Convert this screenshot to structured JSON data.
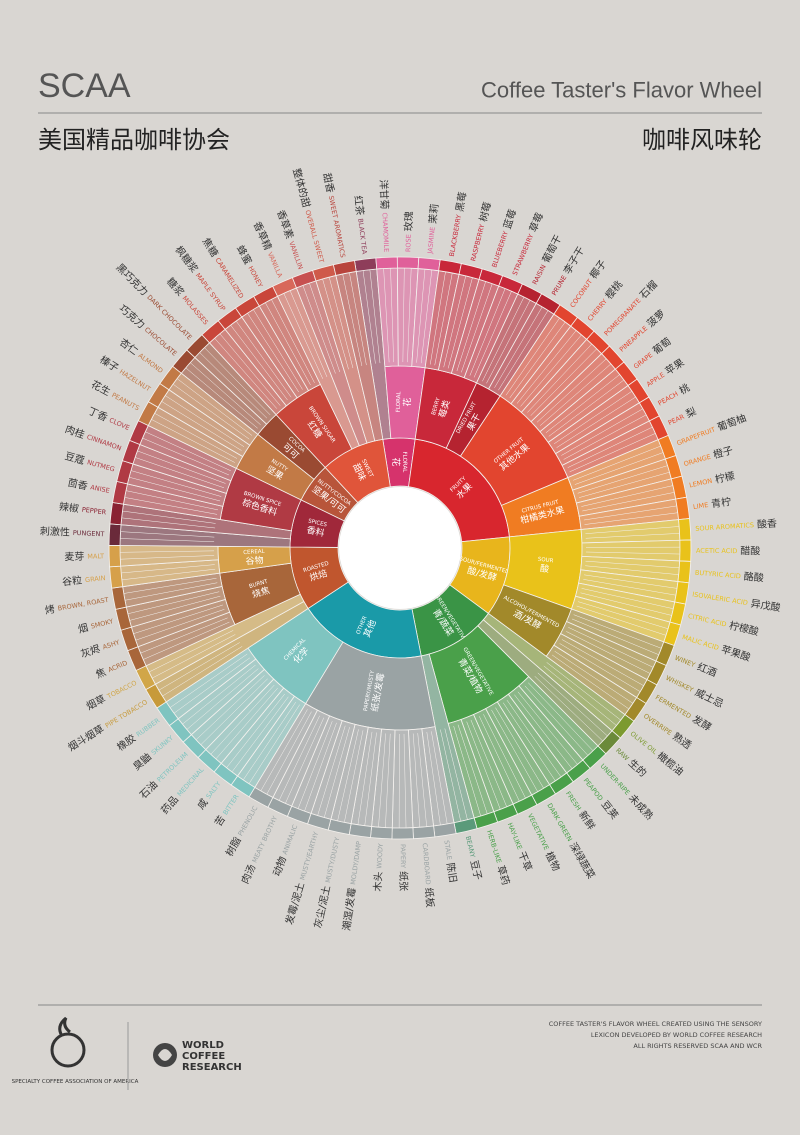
{
  "header": {
    "brand": "SCAA",
    "title": "Coffee Taster's Flavor Wheel",
    "brand_zh": "美国精品咖啡协会",
    "title_zh": "咖啡风味轮"
  },
  "wheel": [
    {
      "en": "FLORAL",
      "zh": "花",
      "color": "#d6336c",
      "children": [
        {
          "en": "BLACK TEA",
          "zh": "红茶",
          "color": "#8e3d5a"
        },
        {
          "en": "FLORAL",
          "zh": "花",
          "color": "#e0609a",
          "children": [
            {
              "en": "CHAMOMILE",
              "zh": "洋甘菊"
            },
            {
              "en": "ROSE",
              "zh": "玫瑰"
            },
            {
              "en": "JASMINE",
              "zh": "茉莉"
            }
          ]
        }
      ]
    },
    {
      "en": "FRUITY",
      "zh": "水果",
      "color": "#d8262e",
      "children": [
        {
          "en": "BERRY",
          "zh": "莓类",
          "color": "#c8283a",
          "children": [
            {
              "en": "BLACKBERRY",
              "zh": "黑莓"
            },
            {
              "en": "RASPBERRY",
              "zh": "树莓"
            },
            {
              "en": "BLUEBERRY",
              "zh": "蓝莓"
            },
            {
              "en": "STRAWBERRY",
              "zh": "草莓"
            }
          ]
        },
        {
          "en": "DRIED FRUIT",
          "zh": "果干",
          "color": "#b52330",
          "children": [
            {
              "en": "RAISIN",
              "zh": "葡萄干"
            },
            {
              "en": "PRUNE",
              "zh": "李子干"
            }
          ]
        },
        {
          "en": "OTHER FRUIT",
          "zh": "其他水果",
          "color": "#e2452f",
          "children": [
            {
              "en": "COCONUT",
              "zh": "椰子"
            },
            {
              "en": "CHERRY",
              "zh": "樱桃"
            },
            {
              "en": "POMEGRANATE",
              "zh": "石榴"
            },
            {
              "en": "PINEAPPLE",
              "zh": "菠萝"
            },
            {
              "en": "GRAPE",
              "zh": "葡萄"
            },
            {
              "en": "APPLE",
              "zh": "苹果"
            },
            {
              "en": "PEACH",
              "zh": "桃"
            },
            {
              "en": "PEAR",
              "zh": "梨"
            }
          ]
        },
        {
          "en": "CITRUS FRUIT",
          "zh": "柑橘类水果",
          "color": "#f07c22",
          "children": [
            {
              "en": "GRAPEFRUIT",
              "zh": "葡萄柚"
            },
            {
              "en": "ORANGE",
              "zh": "橙子"
            },
            {
              "en": "LEMON",
              "zh": "柠檬"
            },
            {
              "en": "LIME",
              "zh": "青柠"
            }
          ]
        }
      ]
    },
    {
      "en": "SOUR/FERMENTED",
      "zh": "酸/发酵",
      "color": "#e8b51c",
      "children": [
        {
          "en": "SOUR",
          "zh": "酸",
          "color": "#e9c21a",
          "children": [
            {
              "en": "SOUR AROMATICS",
              "zh": "酸香"
            },
            {
              "en": "ACETIC ACID",
              "zh": "醋酸"
            },
            {
              "en": "BUTYRIC ACID",
              "zh": "酪酸"
            },
            {
              "en": "ISOVALERIC ACID",
              "zh": "异戊酸"
            },
            {
              "en": "CITRIC ACID",
              "zh": "柠檬酸"
            },
            {
              "en": "MALIC ACID",
              "zh": "苹果酸"
            }
          ]
        },
        {
          "en": "ALCOHOL/FERMENTED",
          "zh": "酒/发酵",
          "color": "#a2892a",
          "children": [
            {
              "en": "WINEY",
              "zh": "红酒"
            },
            {
              "en": "WHISKEY",
              "zh": "威士忌"
            },
            {
              "en": "FERMENTED",
              "zh": "发酵"
            },
            {
              "en": "OVERRIPE",
              "zh": "熟透"
            }
          ]
        }
      ]
    },
    {
      "en": "GREEN/VEGETATIVE",
      "zh": "青/蔬菜",
      "color": "#3a9446",
      "children": [
        {
          "en": "OLIVE OIL",
          "zh": "橄榄油",
          "color": "#7c9a2f"
        },
        {
          "en": "RAW",
          "zh": "生的",
          "color": "#6b8a3a"
        },
        {
          "en": "GREEN/VEGETATIVE",
          "zh": "青菜/植物",
          "color": "#4aa04a",
          "children": [
            {
              "en": "UNDER-RIPE",
              "zh": "未成熟"
            },
            {
              "en": "PEAPOD",
              "zh": "豆荚"
            },
            {
              "en": "FRESH",
              "zh": "新鲜"
            },
            {
              "en": "DARK GREEN",
              "zh": "深绿蔬菜"
            },
            {
              "en": "VEGETATIVE",
              "zh": "植物"
            },
            {
              "en": "HAY-LIKE",
              "zh": "干草"
            },
            {
              "en": "HERB-LIKE",
              "zh": "草药"
            }
          ]
        },
        {
          "en": "BEANY",
          "zh": "豆子",
          "color": "#5a9a7a"
        }
      ]
    },
    {
      "en": "OTHER",
      "zh": "其他",
      "color": "#1a9aa8",
      "children": [
        {
          "en": "PAPERY/MUSTY",
          "zh": "纸张/发霉",
          "color": "#9aa3a4",
          "children": [
            {
              "en": "STALE",
              "zh": "陈旧"
            },
            {
              "en": "CARDBOARD",
              "zh": "纸板"
            },
            {
              "en": "PAPERY",
              "zh": "纸张"
            },
            {
              "en": "WOODY",
              "zh": "木头"
            },
            {
              "en": "MOLDY/DAMP",
              "zh": "潮湿/发霉"
            },
            {
              "en": "MUSTY/DUSTY",
              "zh": "灰尘/泥土"
            },
            {
              "en": "MUSTY/EARTHY",
              "zh": "发霉/泥土"
            },
            {
              "en": "ANIMALIC",
              "zh": "动物"
            },
            {
              "en": "MEATY BROTHY",
              "zh": "肉汤"
            },
            {
              "en": "PHENOLIC",
              "zh": "树脂"
            }
          ]
        },
        {
          "en": "CHEMICAL",
          "zh": "化学",
          "color": "#7fc4c0",
          "children": [
            {
              "en": "BITTER",
              "zh": "苦"
            },
            {
              "en": "SALTY",
              "zh": "咸"
            },
            {
              "en": "MEDICINAL",
              "zh": "药品"
            },
            {
              "en": "PETROLEUM",
              "zh": "石油"
            },
            {
              "en": "SKUNKY",
              "zh": "臭鼬"
            },
            {
              "en": "RUBBER",
              "zh": "橡胶"
            }
          ]
        }
      ]
    },
    {
      "en": "ROASTED",
      "zh": "烘焙",
      "color": "#c0562e",
      "children": [
        {
          "en": "PIPE TOBACCO",
          "zh": "烟斗烟草",
          "color": "#c79a3a"
        },
        {
          "en": "TOBACCO",
          "zh": "烟草",
          "color": "#d1a648"
        },
        {
          "en": "BURNT",
          "zh": "烧焦",
          "color": "#a8663a",
          "children": [
            {
              "en": "ACRID",
              "zh": "焦"
            },
            {
              "en": "ASHY",
              "zh": "灰烬"
            },
            {
              "en": "SMOKY",
              "zh": "烟"
            },
            {
              "en": "BROWN, ROAST",
              "zh": "烤"
            }
          ]
        },
        {
          "en": "CEREAL",
          "zh": "谷物",
          "color": "#d6a04a",
          "children": [
            {
              "en": "GRAIN",
              "zh": "谷粒"
            },
            {
              "en": "MALT",
              "zh": "麦芽"
            }
          ]
        }
      ]
    },
    {
      "en": "SPICES",
      "zh": "香料",
      "color": "#a0283a",
      "children": [
        {
          "en": "PUNGENT",
          "zh": "刺激性",
          "color": "#6a2a3a"
        },
        {
          "en": "PEPPER",
          "zh": "辣椒",
          "color": "#8a2232"
        },
        {
          "en": "BROWN SPICE",
          "zh": "棕色香料",
          "color": "#b03a44",
          "children": [
            {
              "en": "ANISE",
              "zh": "茴香"
            },
            {
              "en": "NUTMEG",
              "zh": "豆蔻"
            },
            {
              "en": "CINNAMON",
              "zh": "肉桂"
            },
            {
              "en": "CLOVE",
              "zh": "丁香"
            }
          ]
        }
      ]
    },
    {
      "en": "NUTTY/COCOA",
      "zh": "坚果/可可",
      "color": "#b8553a",
      "children": [
        {
          "en": "NUTTY",
          "zh": "坚果",
          "color": "#c27a46",
          "children": [
            {
              "en": "PEANUTS",
              "zh": "花生"
            },
            {
              "en": "HAZELNUT",
              "zh": "榛子"
            },
            {
              "en": "ALMOND",
              "zh": "杏仁"
            }
          ]
        },
        {
          "en": "COCOA",
          "zh": "可可",
          "color": "#9a4a32",
          "children": [
            {
              "en": "CHOCOLATE",
              "zh": "巧克力"
            },
            {
              "en": "DARK CHOCOLATE",
              "zh": "黑巧克力"
            }
          ]
        }
      ]
    },
    {
      "en": "SWEET",
      "zh": "甜味",
      "color": "#e0553a",
      "children": [
        {
          "en": "BROWN SUGAR",
          "zh": "红糖",
          "color": "#c9463a",
          "children": [
            {
              "en": "MOLASSES",
              "zh": "糖浆"
            },
            {
              "en": "MAPLE SYRUP",
              "zh": "枫糖浆"
            },
            {
              "en": "CARAMELIZED",
              "zh": "焦糖"
            },
            {
              "en": "HONEY",
              "zh": "蜂蜜"
            }
          ]
        },
        {
          "en": "VANILLA",
          "zh": "香草精",
          "color": "#d8685a"
        },
        {
          "en": "VANILLIN",
          "zh": "香草素",
          "color": "#c75050"
        },
        {
          "en": "OVERALL SWEET",
          "zh": "整体的甜",
          "color": "#cf5a4a"
        },
        {
          "en": "SWEET AROMATICS",
          "zh": "甜香",
          "color": "#b8443c"
        }
      ]
    }
  ],
  "footer": {
    "logo1": "SPECIALTY COFFEE ASSOCIATION OF AMERICA",
    "logo2": "WORLD COFFEE RESEARCH",
    "credits": [
      "COFFEE TASTER'S FLAVOR WHEEL CREATED USING THE SENSORY",
      "LEXICON DEVELOPED BY WORLD COFFEE RESEARCH",
      "ALL RIGHTS RESERVED SCAA AND WCR"
    ]
  }
}
